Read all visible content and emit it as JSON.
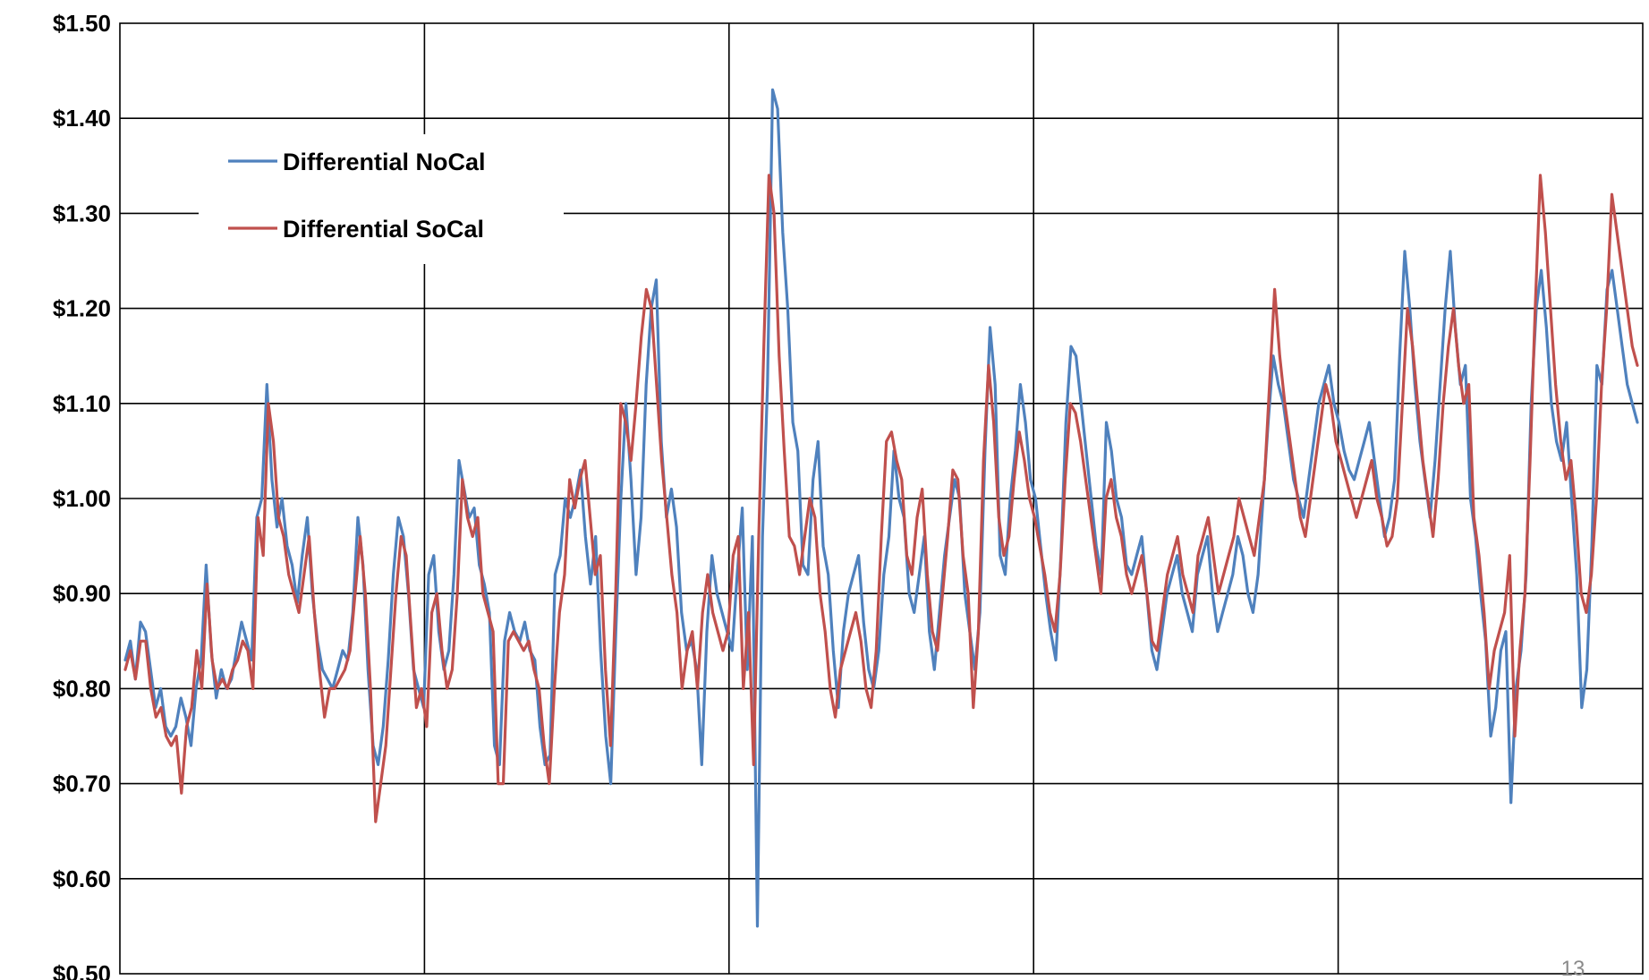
{
  "page_number": "13",
  "chart_data": {
    "type": "line",
    "title": "",
    "xlabel": "",
    "ylabel": "",
    "ylim": [
      0.5,
      1.5
    ],
    "ytick_values": [
      0.5,
      0.6,
      0.7,
      0.8,
      0.9,
      1.0,
      1.1,
      1.2,
      1.3,
      1.4,
      1.5
    ],
    "ytick_labels": [
      "$0.50",
      "$0.60",
      "$0.70",
      "$0.80",
      "$0.90",
      "$1.00",
      "$1.10",
      "$1.20",
      "$1.30",
      "$1.40",
      "$1.50"
    ],
    "x_sections": 5,
    "grid": true,
    "legend_position": "upper-left",
    "series": [
      {
        "name": "Differential NoCal",
        "color": "#4F81BD",
        "values": [
          0.83,
          0.85,
          0.81,
          0.87,
          0.86,
          0.82,
          0.78,
          0.8,
          0.76,
          0.75,
          0.76,
          0.79,
          0.77,
          0.74,
          0.8,
          0.83,
          0.93,
          0.84,
          0.79,
          0.82,
          0.8,
          0.81,
          0.84,
          0.87,
          0.85,
          0.83,
          0.98,
          1.0,
          1.12,
          1.02,
          0.97,
          1.0,
          0.95,
          0.93,
          0.89,
          0.94,
          0.98,
          0.9,
          0.85,
          0.82,
          0.81,
          0.8,
          0.82,
          0.84,
          0.83,
          0.88,
          0.98,
          0.93,
          0.82,
          0.74,
          0.72,
          0.76,
          0.83,
          0.92,
          0.98,
          0.96,
          0.9,
          0.82,
          0.8,
          0.78,
          0.92,
          0.94,
          0.86,
          0.82,
          0.84,
          0.92,
          1.04,
          1.01,
          0.98,
          0.99,
          0.93,
          0.91,
          0.88,
          0.74,
          0.72,
          0.85,
          0.88,
          0.86,
          0.85,
          0.87,
          0.84,
          0.83,
          0.76,
          0.72,
          0.73,
          0.92,
          0.94,
          1.0,
          0.98,
          1.0,
          1.03,
          0.96,
          0.91,
          0.96,
          0.84,
          0.75,
          0.7,
          0.86,
          1.0,
          1.1,
          1.02,
          0.92,
          0.98,
          1.12,
          1.2,
          1.23,
          1.06,
          0.98,
          1.01,
          0.97,
          0.88,
          0.84,
          0.85,
          0.82,
          0.72,
          0.86,
          0.94,
          0.9,
          0.88,
          0.86,
          0.84,
          0.92,
          0.99,
          0.82,
          0.96,
          0.55,
          0.96,
          1.12,
          1.43,
          1.41,
          1.28,
          1.2,
          1.08,
          1.05,
          0.93,
          0.92,
          1.02,
          1.06,
          0.95,
          0.92,
          0.84,
          0.78,
          0.86,
          0.9,
          0.92,
          0.94,
          0.87,
          0.82,
          0.8,
          0.84,
          0.92,
          0.96,
          1.05,
          1.0,
          0.98,
          0.9,
          0.88,
          0.92,
          0.96,
          0.86,
          0.82,
          0.88,
          0.94,
          0.98,
          1.02,
          1.0,
          0.9,
          0.86,
          0.82,
          0.88,
          1.05,
          1.18,
          1.12,
          0.94,
          0.92,
          1.0,
          1.05,
          1.12,
          1.08,
          1.02,
          1.0,
          0.95,
          0.9,
          0.86,
          0.83,
          0.94,
          1.08,
          1.16,
          1.15,
          1.1,
          1.05,
          1.0,
          0.95,
          0.92,
          1.08,
          1.05,
          1.0,
          0.98,
          0.93,
          0.92,
          0.94,
          0.96,
          0.9,
          0.84,
          0.82,
          0.86,
          0.9,
          0.92,
          0.94,
          0.9,
          0.88,
          0.86,
          0.92,
          0.94,
          0.96,
          0.9,
          0.86,
          0.88,
          0.9,
          0.92,
          0.96,
          0.94,
          0.9,
          0.88,
          0.92,
          1.0,
          1.08,
          1.15,
          1.12,
          1.1,
          1.06,
          1.02,
          1.0,
          0.98,
          1.02,
          1.06,
          1.1,
          1.12,
          1.14,
          1.1,
          1.08,
          1.05,
          1.03,
          1.02,
          1.04,
          1.06,
          1.08,
          1.04,
          1.0,
          0.96,
          0.98,
          1.02,
          1.15,
          1.26,
          1.2,
          1.12,
          1.06,
          1.02,
          0.98,
          1.04,
          1.12,
          1.2,
          1.26,
          1.18,
          1.12,
          1.14,
          1.0,
          0.96,
          0.9,
          0.85,
          0.75,
          0.78,
          0.84,
          0.86,
          0.68,
          0.8,
          0.84,
          0.92,
          1.1,
          1.2,
          1.24,
          1.18,
          1.1,
          1.06,
          1.04,
          1.08,
          1.0,
          0.92,
          0.78,
          0.82,
          0.95,
          1.14,
          1.12,
          1.22,
          1.24,
          1.2,
          1.16,
          1.12,
          1.1,
          1.08
        ]
      },
      {
        "name": "Differential SoCal",
        "color": "#C0504D",
        "values": [
          0.82,
          0.84,
          0.81,
          0.85,
          0.85,
          0.8,
          0.77,
          0.78,
          0.75,
          0.74,
          0.75,
          0.69,
          0.76,
          0.78,
          0.84,
          0.8,
          0.91,
          0.83,
          0.8,
          0.81,
          0.8,
          0.82,
          0.83,
          0.85,
          0.84,
          0.8,
          0.98,
          0.94,
          1.1,
          1.06,
          0.98,
          0.96,
          0.92,
          0.9,
          0.88,
          0.92,
          0.96,
          0.88,
          0.82,
          0.77,
          0.8,
          0.8,
          0.81,
          0.82,
          0.84,
          0.9,
          0.96,
          0.9,
          0.8,
          0.66,
          0.7,
          0.74,
          0.82,
          0.9,
          0.96,
          0.94,
          0.86,
          0.78,
          0.8,
          0.76,
          0.88,
          0.9,
          0.84,
          0.8,
          0.82,
          0.9,
          1.02,
          0.98,
          0.96,
          0.98,
          0.9,
          0.88,
          0.86,
          0.7,
          0.7,
          0.85,
          0.86,
          0.85,
          0.84,
          0.85,
          0.82,
          0.8,
          0.74,
          0.7,
          0.8,
          0.88,
          0.92,
          1.02,
          0.99,
          1.02,
          1.04,
          0.98,
          0.92,
          0.94,
          0.82,
          0.74,
          0.9,
          1.1,
          1.08,
          1.04,
          1.1,
          1.17,
          1.22,
          1.2,
          1.12,
          1.04,
          0.98,
          0.92,
          0.88,
          0.8,
          0.84,
          0.86,
          0.8,
          0.88,
          0.92,
          0.88,
          0.86,
          0.84,
          0.86,
          0.94,
          0.96,
          0.8,
          0.88,
          0.72,
          0.96,
          1.16,
          1.34,
          1.3,
          1.15,
          1.05,
          0.96,
          0.95,
          0.92,
          0.96,
          1.0,
          0.98,
          0.9,
          0.86,
          0.8,
          0.77,
          0.82,
          0.84,
          0.86,
          0.88,
          0.85,
          0.8,
          0.78,
          0.84,
          0.96,
          1.06,
          1.07,
          1.04,
          1.02,
          0.94,
          0.92,
          0.98,
          1.01,
          0.92,
          0.86,
          0.84,
          0.9,
          0.96,
          1.03,
          1.02,
          0.94,
          0.9,
          0.78,
          0.86,
          1.04,
          1.14,
          1.08,
          0.98,
          0.94,
          0.96,
          1.02,
          1.07,
          1.04,
          1.0,
          0.98,
          0.95,
          0.92,
          0.88,
          0.86,
          0.92,
          1.02,
          1.1,
          1.09,
          1.06,
          1.02,
          0.98,
          0.94,
          0.9,
          1.0,
          1.02,
          0.98,
          0.96,
          0.92,
          0.9,
          0.92,
          0.94,
          0.9,
          0.85,
          0.84,
          0.88,
          0.92,
          0.94,
          0.96,
          0.92,
          0.9,
          0.88,
          0.94,
          0.96,
          0.98,
          0.94,
          0.9,
          0.92,
          0.94,
          0.96,
          1.0,
          0.98,
          0.96,
          0.94,
          0.98,
          1.02,
          1.12,
          1.22,
          1.15,
          1.1,
          1.06,
          1.02,
          0.98,
          0.96,
          1.0,
          1.04,
          1.08,
          1.12,
          1.1,
          1.06,
          1.04,
          1.02,
          1.0,
          0.98,
          1.0,
          1.02,
          1.04,
          1.0,
          0.98,
          0.95,
          0.96,
          1.0,
          1.1,
          1.2,
          1.16,
          1.1,
          1.04,
          1.0,
          0.96,
          1.02,
          1.1,
          1.16,
          1.2,
          1.14,
          1.1,
          1.12,
          0.98,
          0.94,
          0.88,
          0.8,
          0.84,
          0.86,
          0.88,
          0.94,
          0.75,
          0.84,
          0.9,
          1.04,
          1.2,
          1.34,
          1.28,
          1.2,
          1.12,
          1.06,
          1.02,
          1.04,
          0.98,
          0.9,
          0.88,
          0.92,
          1.0,
          1.12,
          1.2,
          1.32,
          1.28,
          1.24,
          1.2,
          1.16,
          1.14
        ]
      }
    ]
  }
}
